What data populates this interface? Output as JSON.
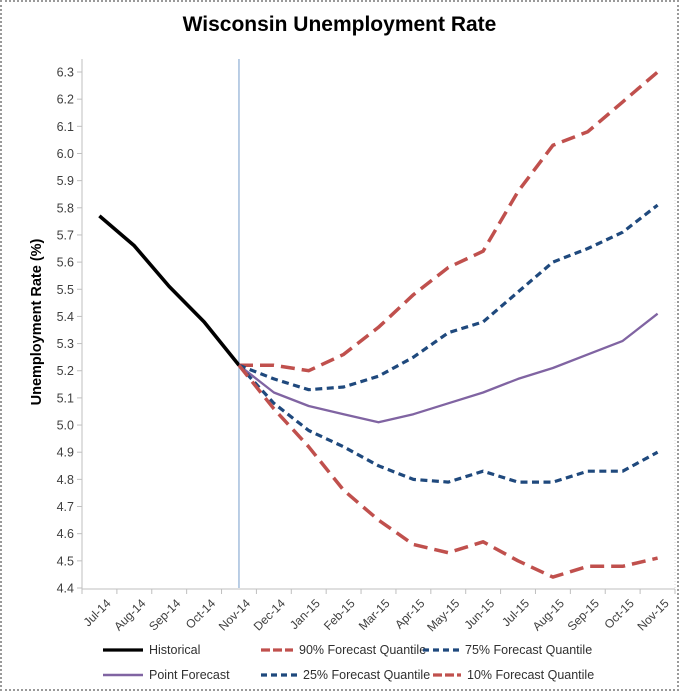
{
  "chart_data": {
    "type": "line",
    "title": "Wisconsin Unemployment Rate",
    "ylabel": "Unemployment Rate (%)",
    "xlabel": "",
    "ylim": [
      4.4,
      6.3
    ],
    "ytick_step": 0.1,
    "grid": false,
    "legend_position": "bottom",
    "categories": [
      "Jul-14",
      "Aug-14",
      "Sep-14",
      "Oct-14",
      "Nov-14",
      "Dec-14",
      "Jan-15",
      "Feb-15",
      "Mar-15",
      "Apr-15",
      "May-15",
      "Jun-15",
      "Jul-15",
      "Aug-15",
      "Sep-15",
      "Oct-15",
      "Nov-15"
    ],
    "vline": {
      "category": "Nov-14",
      "color": "#95B3D7"
    },
    "axis_color": "#BFBFBF",
    "tick_label_color": "#3F3F3F",
    "series": [
      {
        "id": "historical",
        "name": "Historical",
        "color": "#000000",
        "dash": "solid",
        "width": 3.6,
        "start": 0,
        "values": [
          5.77,
          5.66,
          5.51,
          5.38,
          5.22
        ]
      },
      {
        "id": "point_forecast",
        "name": "Point Forecast",
        "color": "#8064A2",
        "dash": "solid",
        "width": 2.3,
        "start": 4,
        "values": [
          5.22,
          5.12,
          5.07,
          5.04,
          5.01,
          5.04,
          5.08,
          5.12,
          5.17,
          5.21,
          5.26,
          5.31,
          5.41
        ]
      },
      {
        "id": "q90",
        "name": "90% Forecast Quantile",
        "color": "#C0504D",
        "dash": "long-dash",
        "width": 3.5,
        "start": 4,
        "values": [
          5.22,
          5.22,
          5.2,
          5.26,
          5.36,
          5.48,
          5.58,
          5.64,
          5.86,
          6.03,
          6.08,
          6.19,
          6.3
        ]
      },
      {
        "id": "q75",
        "name": "75% Forecast Quantile",
        "color": "#1F497D",
        "dash": "short-dash",
        "width": 3.2,
        "start": 4,
        "values": [
          5.22,
          5.17,
          5.13,
          5.14,
          5.18,
          5.25,
          5.34,
          5.38,
          5.49,
          5.6,
          5.65,
          5.71,
          5.81
        ]
      },
      {
        "id": "q25",
        "name": "25% Forecast Quantile",
        "color": "#1F497D",
        "dash": "short-dash",
        "width": 3.2,
        "start": 4,
        "values": [
          5.22,
          5.08,
          4.98,
          4.92,
          4.85,
          4.8,
          4.79,
          4.83,
          4.79,
          4.79,
          4.83,
          4.83,
          4.9
        ]
      },
      {
        "id": "q10",
        "name": "10% Forecast Quantile",
        "color": "#C0504D",
        "dash": "long-dash",
        "width": 3.5,
        "start": 4,
        "values": [
          5.22,
          5.06,
          4.92,
          4.76,
          4.65,
          4.56,
          4.53,
          4.57,
          4.5,
          4.44,
          4.48,
          4.48,
          4.51
        ]
      }
    ]
  }
}
